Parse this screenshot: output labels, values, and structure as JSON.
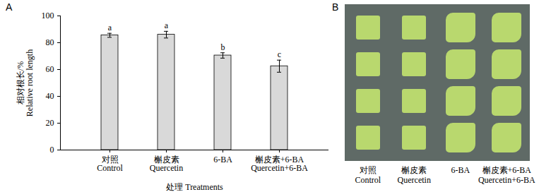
{
  "chart_data": {
    "type": "bar",
    "panel_label": "A",
    "categories": [
      "对照\nControl",
      "槲皮素\nQuercetin",
      "6-BA",
      "槲皮素+6-BA\nQuercetin+6-BA"
    ],
    "values": [
      85.5,
      86,
      70.5,
      62.5
    ],
    "errors": [
      1.5,
      2.5,
      2,
      4.5
    ],
    "significance_labels": [
      "a",
      "a",
      "b",
      "c"
    ],
    "color": "#d9d9d9",
    "xlabel": "处理 Treatments",
    "ylabel": "相对根长/%\nRelative root length",
    "ylim": [
      0,
      100
    ],
    "yticks": [
      0,
      20,
      40,
      60,
      80,
      100
    ],
    "grid": false
  },
  "photo_panel": {
    "label": "B",
    "column_labels": [
      "对照\nControl",
      "槲皮素\nQuercetin",
      "6-BA",
      "槲皮素+6-BA\nQuercetin+6-BA"
    ]
  }
}
